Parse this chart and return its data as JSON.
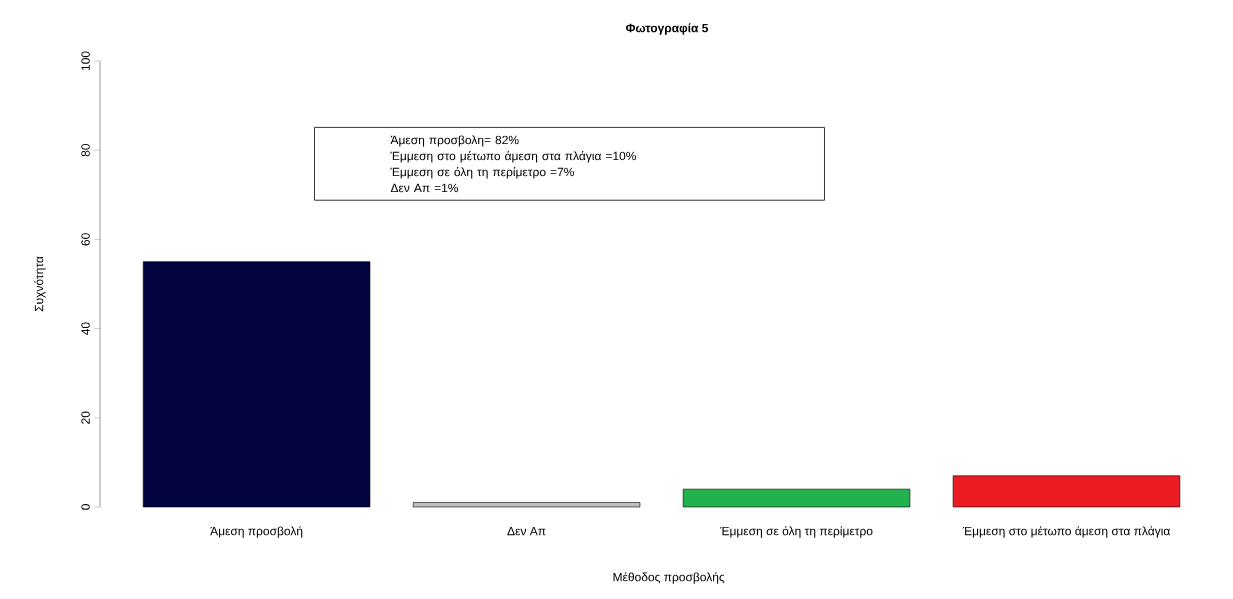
{
  "chart_data": {
    "type": "bar",
    "title": "Φωτογραφία 5",
    "xlabel": "Μέθοδος προσβολής",
    "ylabel": "Συχνότητα",
    "categories": [
      "Άμεση προσβολή",
      "Δεν Απ",
      "Έμμεση σε όλη τη περίμετρο",
      "Έμμεση στο μέτωπο άμεση στα πλάγια"
    ],
    "values": [
      55,
      1,
      4,
      7
    ],
    "colors": [
      "#02033f",
      "#c0c0c0",
      "#22b14c",
      "#ed1c24"
    ],
    "ylim": [
      0,
      100
    ],
    "yticks": [
      0,
      20,
      40,
      60,
      80,
      100
    ],
    "annotations": [
      "Άμεση προσβολη= 82%",
      "Έμμεση στο μέτωπο άμεση στα πλάγια =10%",
      "Έμμεση σε όλη τη περίμετρο =7%",
      "Δεν Απ =1%"
    ]
  }
}
